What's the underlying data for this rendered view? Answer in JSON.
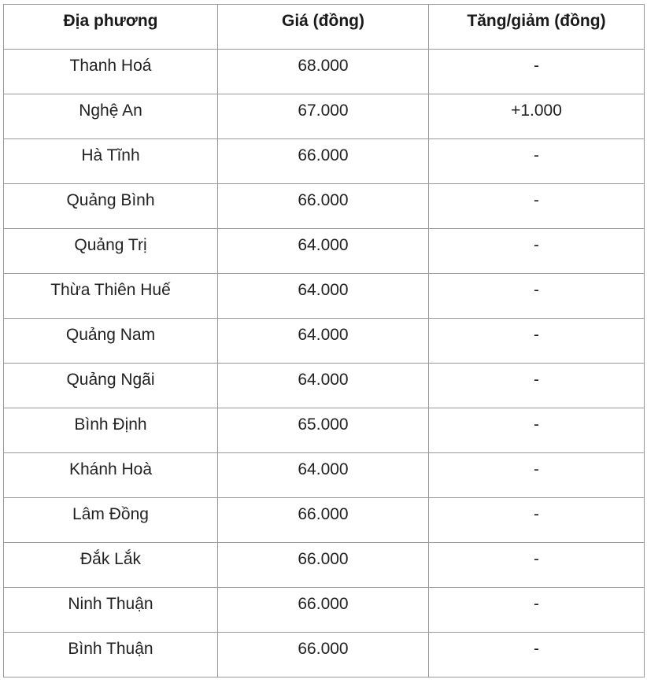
{
  "table": {
    "headers": [
      "Địa phương",
      "Giá (đồng)",
      "Tăng/giảm (đồng)"
    ],
    "rows": [
      [
        "Thanh Hoá",
        "68.000",
        "-"
      ],
      [
        "Nghệ An",
        "67.000",
        "+1.000"
      ],
      [
        "Hà Tĩnh",
        "66.000",
        "-"
      ],
      [
        "Quảng Bình",
        "66.000",
        "-"
      ],
      [
        "Quảng Trị",
        "64.000",
        "-"
      ],
      [
        "Thừa Thiên Huế",
        "64.000",
        "-"
      ],
      [
        "Quảng Nam",
        "64.000",
        "-"
      ],
      [
        "Quảng Ngãi",
        "64.000",
        "-"
      ],
      [
        "Bình Định",
        "65.000",
        "-"
      ],
      [
        "Khánh Hoà",
        "64.000",
        "-"
      ],
      [
        "Lâm Đồng",
        "66.000",
        "-"
      ],
      [
        "Đắk Lắk",
        "66.000",
        "-"
      ],
      [
        "Ninh Thuận",
        "66.000",
        "-"
      ],
      [
        "Bình Thuận",
        "66.000",
        "-"
      ]
    ]
  }
}
